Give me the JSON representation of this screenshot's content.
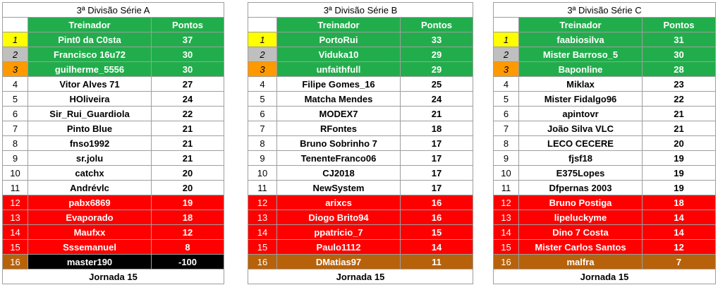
{
  "header": {
    "col_name": "Treinador",
    "col_points": "Pontos"
  },
  "footer": "Jornada 15",
  "tables": [
    {
      "title": "3ª Divisão Série A",
      "rows": [
        {
          "pos": "1",
          "name": "Pint0 da C0sta",
          "pts": "37",
          "zone": "green"
        },
        {
          "pos": "2",
          "name": "Francisco 16u72",
          "pts": "30",
          "zone": "green"
        },
        {
          "pos": "3",
          "name": "guilherme_5556",
          "pts": "30",
          "zone": "green"
        },
        {
          "pos": "4",
          "name": "Vitor Alves 71",
          "pts": "27",
          "zone": "white"
        },
        {
          "pos": "5",
          "name": "HOliveira",
          "pts": "24",
          "zone": "white"
        },
        {
          "pos": "6",
          "name": "Sir_Rui_Guardiola",
          "pts": "22",
          "zone": "white"
        },
        {
          "pos": "7",
          "name": "Pinto Blue",
          "pts": "21",
          "zone": "white"
        },
        {
          "pos": "8",
          "name": "fnso1992",
          "pts": "21",
          "zone": "white"
        },
        {
          "pos": "9",
          "name": "sr.jolu",
          "pts": "21",
          "zone": "white"
        },
        {
          "pos": "10",
          "name": "catchx",
          "pts": "20",
          "zone": "white"
        },
        {
          "pos": "11",
          "name": "Andrévlc",
          "pts": "20",
          "zone": "white"
        },
        {
          "pos": "12",
          "name": "pabx6869",
          "pts": "19",
          "zone": "red"
        },
        {
          "pos": "13",
          "name": "Evaporado",
          "pts": "18",
          "zone": "red"
        },
        {
          "pos": "14",
          "name": "Maufxx",
          "pts": "12",
          "zone": "red"
        },
        {
          "pos": "15",
          "name": "Sssemanuel",
          "pts": "8",
          "zone": "red"
        },
        {
          "pos": "16",
          "name": "master190",
          "pts": "-100",
          "zone": "black"
        }
      ]
    },
    {
      "title": "3ª Divisão Série B",
      "rows": [
        {
          "pos": "1",
          "name": "PortoRui",
          "pts": "33",
          "zone": "green"
        },
        {
          "pos": "2",
          "name": "Viduka10",
          "pts": "29",
          "zone": "green"
        },
        {
          "pos": "3",
          "name": "unfaithfull",
          "pts": "29",
          "zone": "green"
        },
        {
          "pos": "4",
          "name": "Filipe Gomes_16",
          "pts": "25",
          "zone": "white"
        },
        {
          "pos": "5",
          "name": "Matcha Mendes",
          "pts": "24",
          "zone": "white"
        },
        {
          "pos": "6",
          "name": "MODEX7",
          "pts": "21",
          "zone": "white"
        },
        {
          "pos": "7",
          "name": "RFontes",
          "pts": "18",
          "zone": "white"
        },
        {
          "pos": "8",
          "name": "Bruno Sobrinho 7",
          "pts": "17",
          "zone": "white"
        },
        {
          "pos": "9",
          "name": "TenenteFranco06",
          "pts": "17",
          "zone": "white"
        },
        {
          "pos": "10",
          "name": "CJ2018",
          "pts": "17",
          "zone": "white"
        },
        {
          "pos": "11",
          "name": "NewSystem",
          "pts": "17",
          "zone": "white"
        },
        {
          "pos": "12",
          "name": "arixcs",
          "pts": "16",
          "zone": "red"
        },
        {
          "pos": "13",
          "name": "Diogo Brito94",
          "pts": "16",
          "zone": "red"
        },
        {
          "pos": "14",
          "name": "ppatricio_7",
          "pts": "15",
          "zone": "red"
        },
        {
          "pos": "15",
          "name": "Paulo1112",
          "pts": "14",
          "zone": "red"
        },
        {
          "pos": "16",
          "name": "DMatias97",
          "pts": "11",
          "zone": "brown"
        }
      ]
    },
    {
      "title": "3ª Divisão Série C",
      "rows": [
        {
          "pos": "1",
          "name": "faabiosilva",
          "pts": "31",
          "zone": "green"
        },
        {
          "pos": "2",
          "name": "Mister Barroso_5",
          "pts": "30",
          "zone": "green"
        },
        {
          "pos": "3",
          "name": "Baponline",
          "pts": "28",
          "zone": "green"
        },
        {
          "pos": "4",
          "name": "Miklax",
          "pts": "23",
          "zone": "white"
        },
        {
          "pos": "5",
          "name": "Mister Fidalgo96",
          "pts": "22",
          "zone": "white"
        },
        {
          "pos": "6",
          "name": "apintovr",
          "pts": "21",
          "zone": "white"
        },
        {
          "pos": "7",
          "name": "João Silva VLC",
          "pts": "21",
          "zone": "white"
        },
        {
          "pos": "8",
          "name": "LECO CECERE",
          "pts": "20",
          "zone": "white"
        },
        {
          "pos": "9",
          "name": "fjsf18",
          "pts": "19",
          "zone": "white"
        },
        {
          "pos": "10",
          "name": "E375Lopes",
          "pts": "19",
          "zone": "white"
        },
        {
          "pos": "11",
          "name": "Dfpernas 2003",
          "pts": "19",
          "zone": "white"
        },
        {
          "pos": "12",
          "name": "Bruno Postiga",
          "pts": "18",
          "zone": "red"
        },
        {
          "pos": "13",
          "name": "lipeluckyme",
          "pts": "14",
          "zone": "red"
        },
        {
          "pos": "14",
          "name": "Dino 7 Costa",
          "pts": "14",
          "zone": "red"
        },
        {
          "pos": "15",
          "name": "Mister Carlos Santos",
          "pts": "12",
          "zone": "red"
        },
        {
          "pos": "16",
          "name": "malfra",
          "pts": "7",
          "zone": "brown"
        }
      ]
    }
  ]
}
